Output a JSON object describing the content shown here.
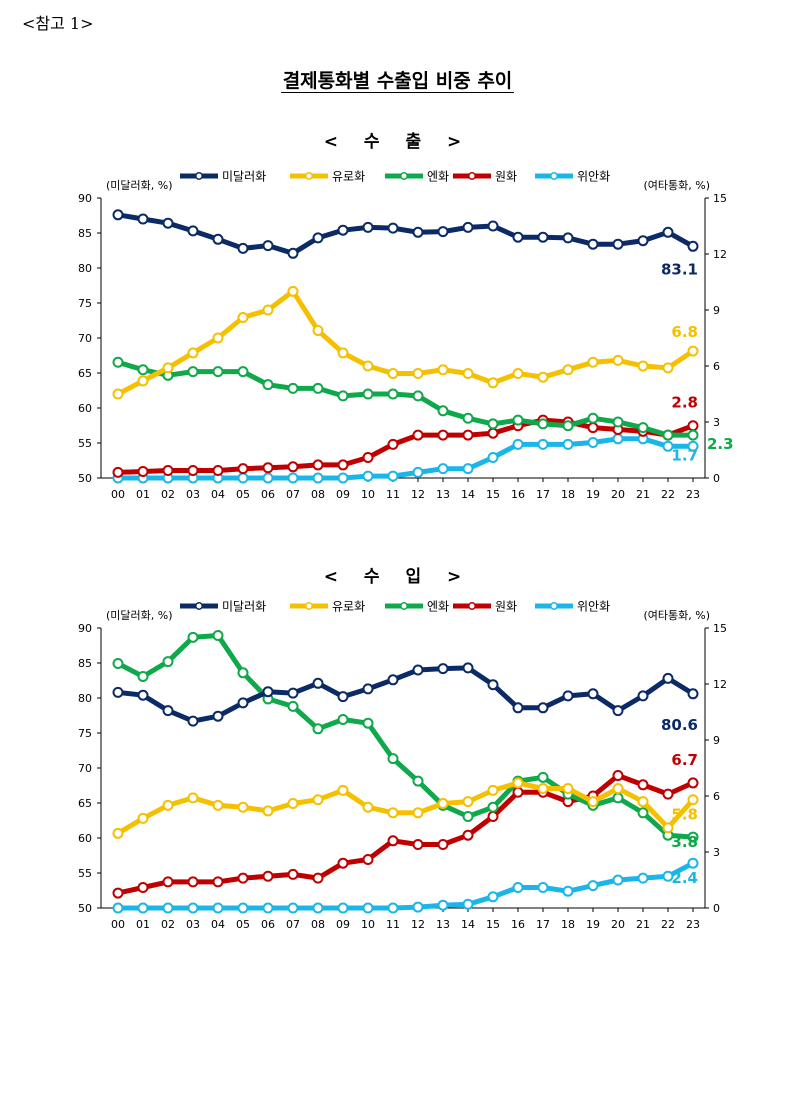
{
  "reference_label": "<참고 1>",
  "main_title": "결제통화별 수출입 비중 추이",
  "colors": {
    "usd": "#0b2a66",
    "eur": "#f5c000",
    "jpy": "#0fa84a",
    "krw": "#c00000",
    "cny": "#1ab6e8"
  },
  "legend": [
    {
      "key": "usd",
      "label": "미달러화"
    },
    {
      "key": "eur",
      "label": "유로화"
    },
    {
      "key": "jpy",
      "label": "엔화"
    },
    {
      "key": "krw",
      "label": "원화"
    },
    {
      "key": "cny",
      "label": "위안화"
    }
  ],
  "chart_data": [
    {
      "type": "line",
      "title": "< 수 출 >",
      "ylabel": "(미달러화, %)",
      "y2label": "(여타통화, %)",
      "categories": [
        "00",
        "01",
        "02",
        "03",
        "04",
        "05",
        "06",
        "07",
        "08",
        "09",
        "10",
        "11",
        "12",
        "13",
        "14",
        "15",
        "16",
        "17",
        "18",
        "19",
        "20",
        "21",
        "22",
        "23"
      ],
      "ylim": [
        50,
        90
      ],
      "yticks": [
        50,
        55,
        60,
        65,
        70,
        75,
        80,
        85,
        90
      ],
      "y2lim": [
        0,
        15
      ],
      "y2ticks": [
        0,
        3,
        6,
        9,
        12,
        15
      ],
      "series": [
        {
          "key": "usd",
          "name": "미달러화",
          "axis": "left",
          "end_label": "83.1",
          "values": [
            87.6,
            87.0,
            86.4,
            85.3,
            84.1,
            82.8,
            83.2,
            82.1,
            84.3,
            85.4,
            85.8,
            85.7,
            85.1,
            85.2,
            85.8,
            86.0,
            84.4,
            84.4,
            84.3,
            83.4,
            83.4,
            83.9,
            85.1,
            83.1
          ]
        },
        {
          "key": "eur",
          "name": "유로화",
          "axis": "right",
          "end_label": "6.8",
          "values": [
            4.5,
            5.2,
            5.9,
            6.7,
            7.5,
            8.6,
            9.0,
            10.0,
            7.9,
            6.7,
            6.0,
            5.6,
            5.6,
            5.8,
            5.6,
            5.1,
            5.6,
            5.4,
            5.8,
            6.2,
            6.3,
            6.0,
            5.9,
            6.8
          ]
        },
        {
          "key": "jpy",
          "name": "엔화",
          "axis": "right",
          "end_label": "2.3",
          "values": [
            6.2,
            5.8,
            5.5,
            5.7,
            5.7,
            5.7,
            5.0,
            4.8,
            4.8,
            4.4,
            4.5,
            4.5,
            4.4,
            3.6,
            3.2,
            2.9,
            3.1,
            2.9,
            2.8,
            3.2,
            3.0,
            2.7,
            2.3,
            2.3
          ]
        },
        {
          "key": "krw",
          "name": "원화",
          "axis": "right",
          "end_label": "2.8",
          "values": [
            0.3,
            0.35,
            0.4,
            0.4,
            0.4,
            0.5,
            0.55,
            0.6,
            0.7,
            0.7,
            1.1,
            1.8,
            2.3,
            2.3,
            2.3,
            2.4,
            2.8,
            3.1,
            3.0,
            2.7,
            2.6,
            2.5,
            2.3,
            2.8
          ]
        },
        {
          "key": "cny",
          "name": "위안화",
          "axis": "right",
          "end_label": "1.7",
          "values": [
            0.0,
            0.0,
            0.0,
            0.0,
            0.0,
            0.0,
            0.0,
            0.0,
            0.0,
            0.0,
            0.1,
            0.1,
            0.3,
            0.5,
            0.5,
            1.1,
            1.8,
            1.8,
            1.8,
            1.9,
            2.1,
            2.1,
            1.7,
            1.7
          ]
        }
      ]
    },
    {
      "type": "line",
      "title": "< 수 입 >",
      "ylabel": "(미달러화, %)",
      "y2label": "(여타통화, %)",
      "categories": [
        "00",
        "01",
        "02",
        "03",
        "04",
        "05",
        "06",
        "07",
        "08",
        "09",
        "10",
        "11",
        "12",
        "13",
        "14",
        "15",
        "16",
        "17",
        "18",
        "19",
        "20",
        "21",
        "22",
        "23"
      ],
      "ylim": [
        50,
        90
      ],
      "yticks": [
        50,
        55,
        60,
        65,
        70,
        75,
        80,
        85,
        90
      ],
      "y2lim": [
        0,
        15
      ],
      "y2ticks": [
        0,
        3,
        6,
        9,
        12,
        15
      ],
      "series": [
        {
          "key": "usd",
          "name": "미달러화",
          "axis": "left",
          "end_label": "80.6",
          "values": [
            80.8,
            80.4,
            78.2,
            76.7,
            77.4,
            79.3,
            80.9,
            80.7,
            82.1,
            80.2,
            81.3,
            82.6,
            84.0,
            84.2,
            84.3,
            81.9,
            78.6,
            78.6,
            80.3,
            80.6,
            78.2,
            80.3,
            82.8,
            80.6
          ]
        },
        {
          "key": "eur",
          "name": "유로화",
          "axis": "right",
          "end_label": "5.8",
          "values": [
            4.0,
            4.8,
            5.5,
            5.9,
            5.5,
            5.4,
            5.2,
            5.6,
            5.8,
            6.3,
            5.4,
            5.1,
            5.1,
            5.6,
            5.7,
            6.3,
            6.7,
            6.4,
            6.4,
            5.7,
            6.4,
            5.7,
            4.3,
            5.8
          ]
        },
        {
          "key": "jpy",
          "name": "엔화",
          "axis": "right",
          "end_label": "3.8",
          "values": [
            13.1,
            12.4,
            13.2,
            14.5,
            14.6,
            12.6,
            11.2,
            10.8,
            9.6,
            10.1,
            9.9,
            8.0,
            6.8,
            5.5,
            4.9,
            5.4,
            6.8,
            7.0,
            6.1,
            5.5,
            5.9,
            5.1,
            3.9,
            3.8
          ]
        },
        {
          "key": "krw",
          "name": "원화",
          "axis": "right",
          "end_label": "6.7",
          "values": [
            0.8,
            1.1,
            1.4,
            1.4,
            1.4,
            1.6,
            1.7,
            1.8,
            1.6,
            2.4,
            2.6,
            3.6,
            3.4,
            3.4,
            3.9,
            4.9,
            6.2,
            6.2,
            5.7,
            6.0,
            7.1,
            6.6,
            6.1,
            6.7
          ]
        },
        {
          "key": "cny",
          "name": "위안화",
          "axis": "right",
          "end_label": "2.4",
          "values": [
            0.0,
            0.0,
            0.0,
            0.0,
            0.0,
            0.0,
            0.0,
            0.0,
            0.0,
            0.0,
            0.0,
            0.0,
            0.05,
            0.15,
            0.2,
            0.6,
            1.1,
            1.1,
            0.9,
            1.2,
            1.5,
            1.6,
            1.7,
            2.4
          ]
        }
      ]
    }
  ]
}
